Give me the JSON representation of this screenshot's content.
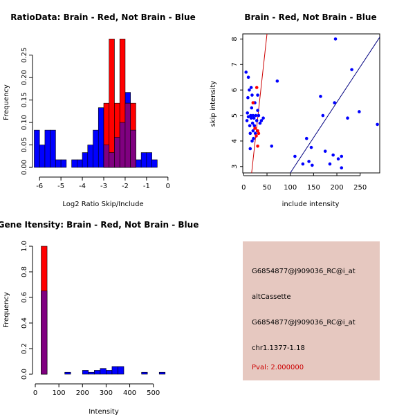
{
  "colors": {
    "red": "#ff0000",
    "blue": "#0000ff",
    "overlap": "#800080",
    "panel_bg": "#e6c8c0",
    "pval": "#cc0000",
    "fit_line": "#000080"
  },
  "chart_data": [
    {
      "type": "histogram",
      "title": "RatioData: Brain - Red, Not Brain - Blue",
      "xlabel": "Log2 Ratio Skip/Include",
      "ylabel": "Frequency",
      "xlim": [
        -6.2,
        0.2
      ],
      "ylim": [
        0,
        0.285
      ],
      "xticks": [
        -6,
        -5,
        -4,
        -3,
        -2,
        -1,
        0
      ],
      "yticks": [
        0.0,
        0.05,
        0.1,
        0.15,
        0.2,
        0.25
      ],
      "ytick_labels": [
        "0.00",
        "0.05",
        "0.10",
        "0.15",
        "0.20",
        "0.25"
      ],
      "bin_width": 0.25,
      "series": [
        {
          "name": "Not Brain",
          "color": "blue",
          "bins": [
            {
              "x0": -6.25,
              "v": 0.083
            },
            {
              "x0": -6.0,
              "v": 0.05
            },
            {
              "x0": -5.75,
              "v": 0.083
            },
            {
              "x0": -5.5,
              "v": 0.083
            },
            {
              "x0": -5.25,
              "v": 0.017
            },
            {
              "x0": -5.0,
              "v": 0.017
            },
            {
              "x0": -4.5,
              "v": 0.017
            },
            {
              "x0": -4.25,
              "v": 0.017
            },
            {
              "x0": -4.0,
              "v": 0.033
            },
            {
              "x0": -3.75,
              "v": 0.05
            },
            {
              "x0": -3.5,
              "v": 0.083
            },
            {
              "x0": -3.25,
              "v": 0.133
            },
            {
              "x0": -3.0,
              "v": 0.05
            },
            {
              "x0": -2.75,
              "v": 0.033
            },
            {
              "x0": -2.5,
              "v": 0.067
            },
            {
              "x0": -2.25,
              "v": 0.1
            },
            {
              "x0": -2.0,
              "v": 0.167
            },
            {
              "x0": -1.75,
              "v": 0.083
            },
            {
              "x0": -1.5,
              "v": 0.017
            },
            {
              "x0": -1.25,
              "v": 0.033
            },
            {
              "x0": -1.0,
              "v": 0.033
            },
            {
              "x0": -0.75,
              "v": 0.017
            }
          ]
        },
        {
          "name": "Brain",
          "color": "red",
          "bins": [
            {
              "x0": -3.0,
              "v": 0.143
            },
            {
              "x0": -2.75,
              "v": 0.286
            },
            {
              "x0": -2.5,
              "v": 0.143
            },
            {
              "x0": -2.25,
              "v": 0.286
            },
            {
              "x0": -2.0,
              "v": 0.143
            },
            {
              "x0": -1.75,
              "v": 0.143
            }
          ]
        }
      ]
    },
    {
      "type": "scatter",
      "title": "Brain - Red, Not Brain - Blue",
      "xlabel": "include intensity",
      "ylabel": "skip intensity",
      "xlim": [
        -2,
        292
      ],
      "ylim": [
        2.75,
        8.2
      ],
      "xticks": [
        0,
        50,
        100,
        150,
        200,
        250
      ],
      "yticks": [
        3,
        4,
        5,
        6,
        7,
        8
      ],
      "series": [
        {
          "name": "Not Brain",
          "color": "blue",
          "points": [
            [
              5,
              6.7
            ],
            [
              7,
              4.8
            ],
            [
              8,
              5.1
            ],
            [
              9,
              5.7
            ],
            [
              10,
              4.95
            ],
            [
              10,
              6.5
            ],
            [
              12,
              6.0
            ],
            [
              13,
              4.6
            ],
            [
              14,
              4.3
            ],
            [
              14,
              3.7
            ],
            [
              15,
              5.0
            ],
            [
              16,
              6.1
            ],
            [
              16,
              4.9
            ],
            [
              17,
              5.3
            ],
            [
              18,
              4.0
            ],
            [
              18,
              5.8
            ],
            [
              19,
              4.7
            ],
            [
              20,
              4.4
            ],
            [
              20,
              5.0
            ],
            [
              21,
              4.1
            ],
            [
              22,
              4.9
            ],
            [
              23,
              4.6
            ],
            [
              24,
              5.5
            ],
            [
              25,
              4.3
            ],
            [
              26,
              5.0
            ],
            [
              28,
              4.8
            ],
            [
              30,
              5.2
            ],
            [
              30,
              5.8
            ],
            [
              32,
              5.0
            ],
            [
              35,
              4.7
            ],
            [
              38,
              4.8
            ],
            [
              42,
              4.9
            ],
            [
              60,
              3.8
            ],
            [
              72,
              6.35
            ],
            [
              110,
              3.4
            ],
            [
              127,
              3.1
            ],
            [
              135,
              4.1
            ],
            [
              140,
              3.2
            ],
            [
              145,
              3.75
            ],
            [
              147,
              3.05
            ],
            [
              165,
              5.75
            ],
            [
              170,
              5.0
            ],
            [
              175,
              3.6
            ],
            [
              185,
              3.1
            ],
            [
              192,
              3.45
            ],
            [
              195,
              5.5
            ],
            [
              197,
              8.0
            ],
            [
              203,
              3.3
            ],
            [
              210,
              2.95
            ],
            [
              210,
              3.4
            ],
            [
              223,
              4.9
            ],
            [
              232,
              6.8
            ],
            [
              248,
              5.15
            ],
            [
              287,
              4.65
            ]
          ]
        },
        {
          "name": "Brain",
          "color": "red",
          "points": [
            [
              20,
              5.5
            ],
            [
              24,
              4.5
            ],
            [
              27,
              4.2
            ],
            [
              28,
              6.1
            ],
            [
              30,
              3.8
            ],
            [
              30,
              4.4
            ],
            [
              32,
              4.3
            ]
          ]
        }
      ],
      "lines": [
        {
          "name": "red-line",
          "color": "red",
          "x": [
            17,
            50
          ],
          "y": [
            2.75,
            8.2
          ]
        },
        {
          "name": "fit-line",
          "color": "navy",
          "x": [
            100,
            292
          ],
          "y": [
            2.75,
            8.07
          ]
        }
      ]
    },
    {
      "type": "histogram",
      "title": "Gene Itensity: Brain - Red, Not Brain - Blue",
      "xlabel": "Intensity",
      "ylabel": "Frequency",
      "xlim": [
        0,
        580
      ],
      "ylim": [
        0,
        1.0
      ],
      "xticks": [
        0,
        100,
        200,
        300,
        400,
        500
      ],
      "yticks": [
        0.0,
        0.2,
        0.4,
        0.6,
        0.8,
        1.0
      ],
      "ytick_labels": [
        "0.0",
        "0.2",
        "0.4",
        "0.6",
        "0.8",
        "1.0"
      ],
      "bin_width": 25,
      "series": [
        {
          "name": "Not Brain",
          "color": "blue",
          "bins": [
            {
              "x0": 25,
              "v": 0.65
            },
            {
              "x0": 125,
              "v": 0.015
            },
            {
              "x0": 200,
              "v": 0.03
            },
            {
              "x0": 225,
              "v": 0.015
            },
            {
              "x0": 250,
              "v": 0.03
            },
            {
              "x0": 275,
              "v": 0.045
            },
            {
              "x0": 300,
              "v": 0.03
            },
            {
              "x0": 325,
              "v": 0.06
            },
            {
              "x0": 350,
              "v": 0.06
            },
            {
              "x0": 450,
              "v": 0.015
            },
            {
              "x0": 525,
              "v": 0.015
            }
          ]
        },
        {
          "name": "Brain",
          "color": "red",
          "bins": [
            {
              "x0": 25,
              "v": 1.0
            }
          ]
        }
      ]
    }
  ],
  "info": {
    "probe": "G6854877@J909036_RC@i_at",
    "event_type": "altCassette",
    "probe2": "G6854877@J909036_RC@i_at",
    "location": "chr1.1377-1.18",
    "pval": "Pval: 2.000000"
  }
}
